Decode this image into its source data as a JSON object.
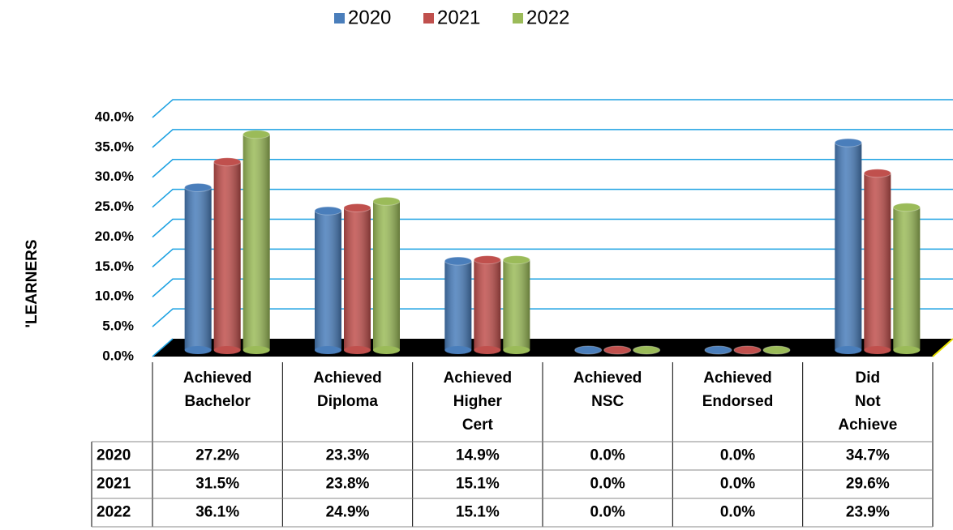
{
  "chart_data": {
    "type": "bar",
    "y_label": "'LEARNERS",
    "categories": [
      "Achieved Bachelor",
      "Achieved Diploma",
      "Achieved Higher Cert",
      "Achieved NSC",
      "Achieved Endorsed",
      "Did Not Achieve"
    ],
    "series": [
      {
        "name": "2020",
        "color": "#4a7ebb",
        "values": [
          27.2,
          23.3,
          14.9,
          0.0,
          0.0,
          34.7
        ],
        "value_labels": [
          "27.2%",
          "23.3%",
          "14.9%",
          "0.0%",
          "0.0%",
          "34.7%"
        ]
      },
      {
        "name": "2021",
        "color": "#c0504d",
        "values": [
          31.5,
          23.8,
          15.1,
          0.0,
          0.0,
          29.6
        ],
        "value_labels": [
          "31.5%",
          "23.8%",
          "15.1%",
          "0.0%",
          "0.0%",
          "29.6%"
        ]
      },
      {
        "name": "2022",
        "color": "#9bbb59",
        "values": [
          36.1,
          24.9,
          15.1,
          0.0,
          0.0,
          23.9
        ],
        "value_labels": [
          "36.1%",
          "24.9%",
          "15.1%",
          "0.0%",
          "0.0%",
          "23.9%"
        ]
      }
    ],
    "ylim": [
      0,
      40
    ],
    "yticks": [
      {
        "value": 0,
        "label": "0.0%"
      },
      {
        "value": 5,
        "label": "5.0%"
      },
      {
        "value": 10,
        "label": "10.0%"
      },
      {
        "value": 15,
        "label": "15.0%"
      },
      {
        "value": 20,
        "label": "20.0%"
      },
      {
        "value": 25,
        "label": "25.0%"
      },
      {
        "value": 30,
        "label": "30.0%"
      },
      {
        "value": 35,
        "label": "35.0%"
      },
      {
        "value": 40,
        "label": "40.0%"
      }
    ],
    "grid": true,
    "legend": "top"
  }
}
